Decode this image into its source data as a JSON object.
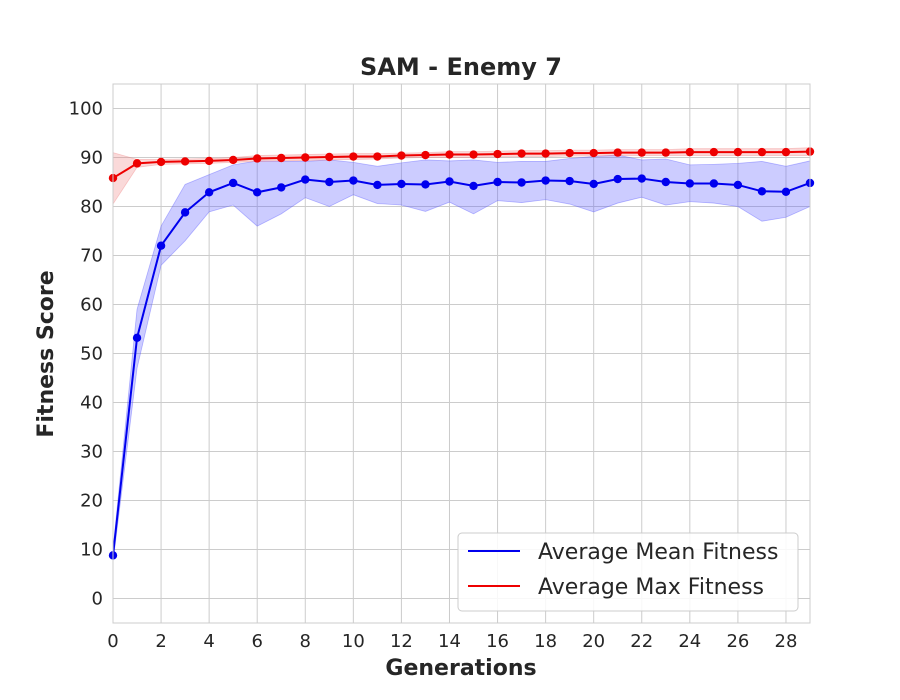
{
  "chart_data": {
    "type": "line",
    "title": "SAM - Enemy 7",
    "xlabel": "Generations",
    "ylabel": "Fitness Score",
    "xlim": [
      0,
      29
    ],
    "ylim": [
      -5,
      105
    ],
    "xticks": [
      0,
      2,
      4,
      6,
      8,
      10,
      12,
      14,
      16,
      18,
      20,
      22,
      24,
      26,
      28
    ],
    "yticks": [
      0,
      10,
      20,
      30,
      40,
      50,
      60,
      70,
      80,
      90,
      100
    ],
    "grid": true,
    "legend_position": "lower-right",
    "x": [
      0,
      1,
      2,
      3,
      4,
      5,
      6,
      7,
      8,
      9,
      10,
      11,
      12,
      13,
      14,
      15,
      16,
      17,
      18,
      19,
      20,
      21,
      22,
      23,
      24,
      25,
      26,
      27,
      28,
      29
    ],
    "series": [
      {
        "name": "Average Mean Fitness",
        "color": "#0000ee",
        "band_color": "#5555ff",
        "values": [
          8.8,
          53.2,
          72.0,
          78.8,
          82.9,
          84.8,
          82.9,
          83.9,
          85.5,
          85.0,
          85.3,
          84.4,
          84.6,
          84.5,
          85.1,
          84.2,
          85.0,
          84.9,
          85.3,
          85.2,
          84.6,
          85.6,
          85.7,
          85.0,
          84.7,
          84.7,
          84.4,
          83.1,
          83.0,
          84.8
        ],
        "lower": [
          7.5,
          47.0,
          68.0,
          73.0,
          78.9,
          80.3,
          76.0,
          78.5,
          81.8,
          80.0,
          82.4,
          80.6,
          80.3,
          79.0,
          80.9,
          78.5,
          81.2,
          80.8,
          81.4,
          80.5,
          78.9,
          80.7,
          81.9,
          80.3,
          81.0,
          80.7,
          80.0,
          77.0,
          77.8,
          80.0
        ],
        "upper": [
          10.0,
          59.0,
          76.0,
          84.5,
          86.5,
          88.5,
          89.3,
          89.2,
          89.2,
          89.5,
          89.0,
          88.2,
          88.9,
          89.5,
          89.3,
          89.5,
          89.0,
          89.2,
          89.2,
          89.8,
          90.2,
          90.5,
          89.5,
          89.7,
          88.5,
          88.6,
          88.8,
          89.2,
          88.2,
          89.3
        ]
      },
      {
        "name": "Average Max Fitness",
        "color": "#ee0000",
        "band_color": "#f08080",
        "values": [
          85.8,
          88.8,
          89.1,
          89.2,
          89.3,
          89.5,
          89.8,
          89.9,
          90.0,
          90.1,
          90.2,
          90.2,
          90.4,
          90.5,
          90.6,
          90.6,
          90.7,
          90.8,
          90.8,
          90.9,
          90.9,
          91.0,
          91.0,
          91.0,
          91.1,
          91.1,
          91.1,
          91.1,
          91.1,
          91.2
        ],
        "lower": [
          80.5,
          88.0,
          88.6,
          88.7,
          88.8,
          89.0,
          89.2,
          89.3,
          89.4,
          89.5,
          89.6,
          89.7,
          89.9,
          90.0,
          90.0,
          90.0,
          90.1,
          90.2,
          90.2,
          90.3,
          90.3,
          90.4,
          90.4,
          90.4,
          90.4,
          90.4,
          90.4,
          90.4,
          90.4,
          90.4
        ],
        "upper": [
          91.0,
          89.6,
          89.6,
          89.7,
          89.8,
          90.0,
          90.4,
          90.5,
          90.6,
          90.7,
          90.8,
          90.8,
          90.9,
          91.0,
          91.2,
          91.2,
          91.3,
          91.4,
          91.4,
          91.5,
          91.5,
          91.6,
          91.6,
          91.6,
          91.8,
          91.8,
          91.8,
          91.8,
          91.8,
          92.0
        ]
      }
    ]
  }
}
